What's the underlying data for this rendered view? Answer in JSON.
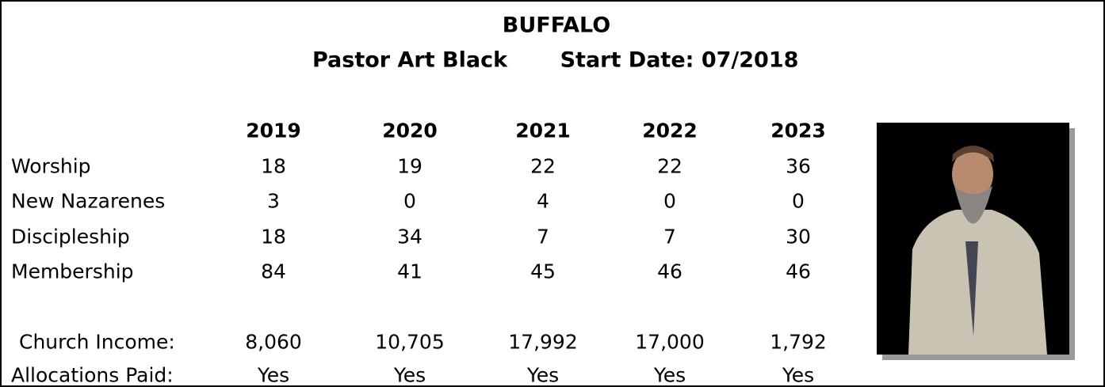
{
  "header": {
    "title": "BUFFALO",
    "pastor": "Pastor Art Black",
    "start_date": "Start Date: 07/2018"
  },
  "table": {
    "columns": [
      "2019",
      "2020",
      "2021",
      "2022",
      "2023"
    ],
    "rows": [
      [
        "Worship",
        "18",
        "19",
        "22",
        "22",
        "36"
      ],
      [
        "New Nazarenes",
        "3",
        "0",
        "4",
        "0",
        "0"
      ],
      [
        "Discipleship",
        "18",
        "34",
        "7",
        "7",
        "30"
      ],
      [
        "Membership",
        "84",
        "41",
        "45",
        "46",
        "46"
      ],
      [
        "Church Income:",
        "8,060",
        "10,705",
        "17,992",
        "17,000",
        "1,792"
      ],
      [
        "Allocations Paid:",
        "Yes",
        "Yes",
        "Yes",
        "Yes",
        "Yes"
      ]
    ]
  }
}
